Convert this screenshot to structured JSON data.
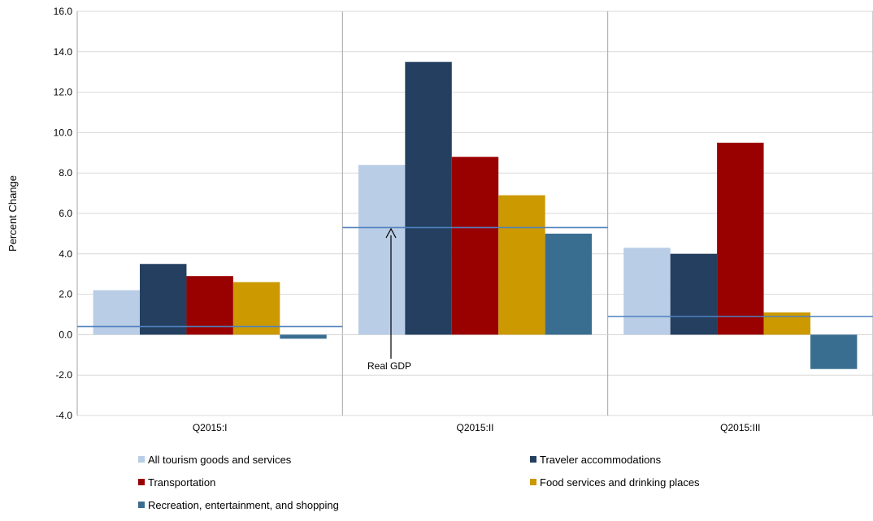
{
  "chart_data": {
    "type": "bar",
    "ylabel": "Percent Change",
    "ylim": [
      -4.0,
      16.0
    ],
    "ytick_step": 2.0,
    "grid": "horizontal and category separators",
    "categories": [
      "Q2015:I",
      "Q2015:II",
      "Q2015:III"
    ],
    "series": [
      {
        "name": "All tourism goods and services",
        "color": "#b9cde6",
        "values": [
          2.2,
          8.4,
          4.3
        ]
      },
      {
        "name": "Traveler accommodations",
        "color": "#243f60",
        "values": [
          3.5,
          13.5,
          4.0
        ]
      },
      {
        "name": "Transportation",
        "color": "#990000",
        "values": [
          2.9,
          8.8,
          9.5
        ]
      },
      {
        "name": "Food services and drinking places",
        "color": "#cc9900",
        "values": [
          2.6,
          6.9,
          1.1
        ]
      },
      {
        "name": "Recreation, entertainment, and shopping",
        "color": "#3a6e91",
        "values": [
          -0.2,
          5.0,
          -1.7
        ]
      }
    ],
    "reference_line": {
      "name": "Real GDP",
      "color": "#4f81bd",
      "values": [
        0.4,
        5.3,
        0.9
      ]
    },
    "annotation": {
      "text": "Real GDP",
      "points_to_category": "Q2015:II"
    },
    "legend_position": "bottom"
  }
}
